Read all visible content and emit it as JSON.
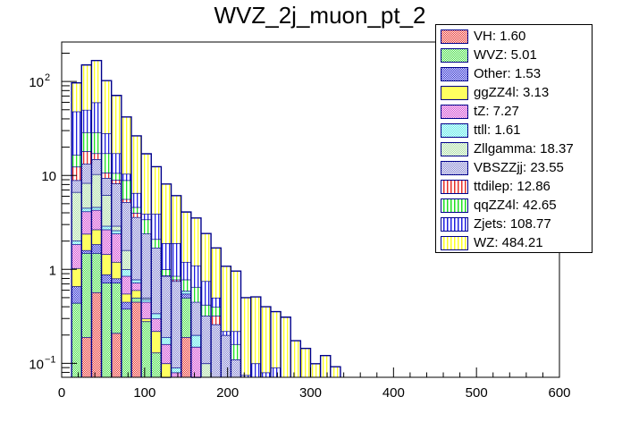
{
  "chart_data": {
    "type": "bar",
    "subtype": "stacked-histogram",
    "title": "WVZ_2j_muon_pt_2",
    "xlabel": "",
    "ylabel": "",
    "xlim": [
      0,
      600
    ],
    "ylim": [
      0.071,
      263
    ],
    "yscale": "log",
    "x_ticks": [
      "0",
      "100",
      "200",
      "300",
      "400",
      "500",
      "600"
    ],
    "y_ticks": [
      {
        "label_base": "10",
        "label_exp": "2",
        "value": 100
      },
      {
        "label_base": "10",
        "label_exp": "",
        "value": 10
      },
      {
        "label_base": "1",
        "label_exp": "",
        "value": 1
      },
      {
        "label_base": "10",
        "label_exp": "−1",
        "value": 0.1
      }
    ],
    "bin_start": 12,
    "bin_width": 12,
    "legend_position": "top-right",
    "series": [
      {
        "name": "VH",
        "legend": "VH: 1.60",
        "color": "#e8302b",
        "pattern": "check",
        "values": [
          0,
          0.19,
          0.57,
          0,
          0.21,
          0,
          0.45,
          0,
          0,
          0,
          0,
          0.19,
          0,
          0,
          0,
          0,
          0,
          0,
          0,
          0,
          0,
          0,
          0,
          0,
          0,
          0,
          0
        ]
      },
      {
        "name": "WVZ",
        "legend": "WVZ: 5.01",
        "color": "#3ddc3d",
        "pattern": "check",
        "values": [
          0.44,
          1.3,
          0.92,
          0.72,
          0.51,
          0.38,
          0.05,
          0.28,
          0.13,
          0.07,
          0,
          0.31,
          0,
          0,
          0,
          0,
          0,
          0,
          0,
          0,
          0,
          0,
          0,
          0,
          0,
          0,
          0
        ]
      },
      {
        "name": "Other",
        "legend": "Other: 1.53",
        "color": "#2020d0",
        "pattern": "check",
        "values": [
          0.22,
          0.11,
          0.36,
          0.16,
          0.08,
          0.07,
          0,
          0,
          0,
          0,
          0,
          0.05,
          0,
          0,
          0,
          0,
          0,
          0,
          0,
          0,
          0,
          0,
          0,
          0,
          0,
          0,
          0
        ]
      },
      {
        "name": "ggZZ4l",
        "legend": "ggZZ4l: 3.13",
        "color": "#ffff60",
        "pattern": "solid",
        "values": [
          0.37,
          0.79,
          0.81,
          0.57,
          0.4,
          0.1,
          0.1,
          0.02,
          0.09,
          0.03,
          0,
          0,
          0.01,
          0,
          0,
          0,
          0,
          0,
          0,
          0,
          0,
          0,
          0,
          0,
          0,
          0,
          0
        ]
      },
      {
        "name": "tZ",
        "legend": "tZ: 7.27",
        "color": "#d040d0",
        "pattern": "check",
        "values": [
          0.82,
          1.75,
          1.63,
          1.21,
          1.2,
          0.3,
          0.12,
          0.15,
          0.08,
          0.06,
          0.08,
          0,
          0.14,
          0,
          0,
          0,
          0,
          0,
          0,
          0,
          0,
          0,
          0,
          0,
          0,
          0,
          0
        ]
      },
      {
        "name": "ttll",
        "legend": "ttll: 1.61",
        "color": "#50e8e8",
        "pattern": "check",
        "values": [
          0.17,
          0.37,
          0.31,
          0.24,
          0.2,
          0.15,
          0.06,
          0.03,
          0.04,
          0.03,
          0.01,
          0.04,
          0.05,
          0,
          0,
          0,
          0,
          0,
          0,
          0,
          0,
          0,
          0,
          0,
          0,
          0,
          0
        ]
      },
      {
        "name": "Zllgamma",
        "legend": "Zllgamma: 18.37",
        "color": "#a8dca0",
        "pattern": "check",
        "values": [
          4.63,
          3.79,
          5.7,
          3.3,
          0.3,
          0.6,
          0,
          0.02,
          0,
          0,
          0,
          0,
          0,
          0.1,
          0,
          0,
          0,
          0,
          0,
          0,
          0,
          0,
          0,
          0,
          0,
          0,
          0
        ]
      },
      {
        "name": "VBSZZjj",
        "legend": "VBSZZjj: 23.55",
        "color": "#8080d0",
        "pattern": "check",
        "values": [
          2.25,
          5.0,
          4.6,
          3.2,
          5.3,
          3.6,
          2.82,
          1.9,
          1.36,
          0.66,
          0.66,
          0,
          0.25,
          0.22,
          0.26,
          0.2,
          0.11,
          0,
          0,
          0,
          0,
          0,
          0,
          0,
          0,
          0,
          0
        ]
      },
      {
        "name": "ttdilep",
        "legend": "ttdilep: 12.86",
        "color": "#e8302b",
        "pattern": "vlines",
        "values": [
          3.5,
          4.8,
          2.3,
          1.3,
          0.8,
          0.4,
          0.4,
          0,
          0,
          0.01,
          0.03,
          0,
          0,
          0,
          0.06,
          0,
          0,
          0,
          0,
          0,
          0,
          0,
          0,
          0,
          0,
          0,
          0
        ]
      },
      {
        "name": "qqZZ4l",
        "legend": "qqZZ4l: 42.65",
        "color": "#20e020",
        "pattern": "vlines",
        "values": [
          4.2,
          10.7,
          11.6,
          6.5,
          1.6,
          3.3,
          0.6,
          1.0,
          0.4,
          0.14,
          0.07,
          0.19,
          0.2,
          0.1,
          0.08,
          0,
          0.05,
          0,
          0,
          0,
          0,
          0,
          0,
          0,
          0,
          0,
          0
        ]
      },
      {
        "name": "Zjets",
        "legend": "Zjets: 108.77",
        "color": "#2020e0",
        "pattern": "vlines",
        "values": [
          31.4,
          21.1,
          31.1,
          10.9,
          6.6,
          1.5,
          1.9,
          0.5,
          1.8,
          0.9,
          1.05,
          0.42,
          0.45,
          0.33,
          0.1,
          0.02,
          0.06,
          0.075,
          0.1,
          0.08,
          0.09,
          0,
          0,
          0,
          0,
          0,
          0
        ]
      },
      {
        "name": "WZ",
        "legend": "WZ: 484.21",
        "color": "#ffff20",
        "pattern": "vlines",
        "values": [
          48.6,
          100.1,
          107.1,
          73.9,
          53.8,
          31.5,
          19.9,
          13.1,
          8.5,
          6.2,
          4.2,
          2.88,
          2.42,
          1.66,
          1.19,
          0.86,
          0.74,
          0.425,
          0.41,
          0.32,
          0.265,
          0.31,
          0.174,
          0.144,
          0.099,
          0.121,
          0.092
        ]
      }
    ]
  }
}
